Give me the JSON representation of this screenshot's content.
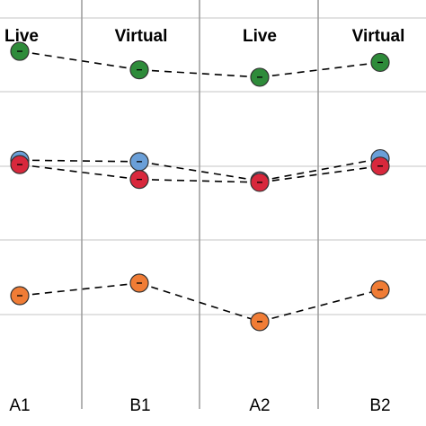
{
  "chart_data": {
    "type": "line",
    "categories": [
      "A1",
      "B1",
      "A2",
      "B2"
    ],
    "condition_labels": [
      "Live",
      "Virtual",
      "Live",
      "Virtual"
    ],
    "ylim": [
      0,
      5
    ],
    "grid": true,
    "legend": "none",
    "series": [
      {
        "color": "#2e8b3a",
        "values": [
          4.55,
          4.3,
          4.2,
          4.4
        ]
      },
      {
        "color": "#6a9fd8",
        "values": [
          3.08,
          3.06,
          2.8,
          3.1
        ]
      },
      {
        "color": "#d8283c",
        "values": [
          3.02,
          2.82,
          2.78,
          3.0
        ]
      },
      {
        "color": "#f07c35",
        "values": [
          1.25,
          1.42,
          0.9,
          1.33
        ]
      }
    ]
  }
}
